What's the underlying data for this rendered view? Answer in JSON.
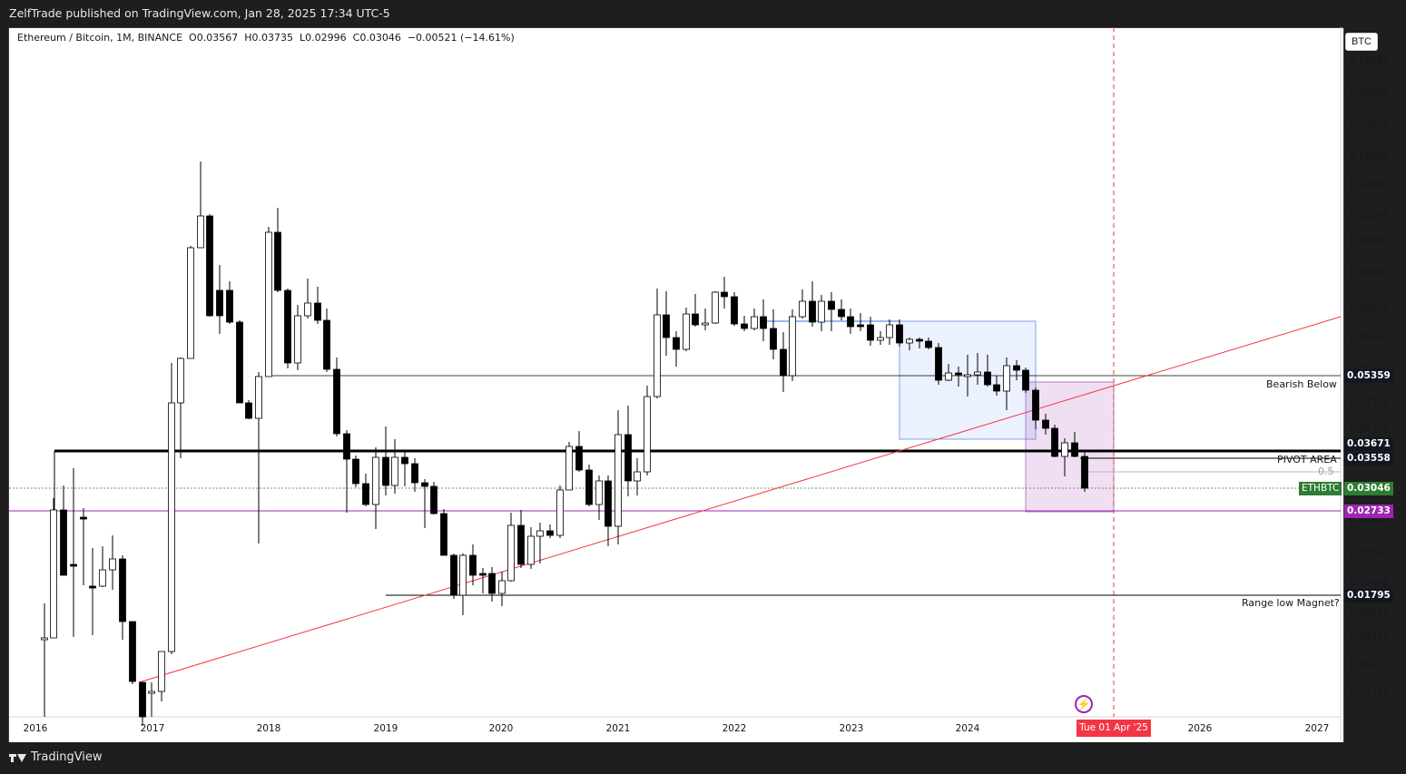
{
  "header": {
    "publisher_line": "ZelfTrade published on TradingView.com, Jan 28, 2025 17:34 UTC-5"
  },
  "legend": {
    "symbol": "Ethereum / Bitcoin, 1M, BINANCE",
    "o_label": "O",
    "o_value": "0.03567",
    "h_label": "H",
    "h_value": "0.03735",
    "l_label": "L",
    "l_value": "0.02996",
    "c_label": "C",
    "c_value": "0.03046",
    "change": "−0.00521 (−14.61%)"
  },
  "price_axis": {
    "currency": "BTC",
    "ticks": [
      "0.26000",
      "0.22000",
      "0.19000",
      "0.16000",
      "0.14000",
      "0.12000",
      "0.10500",
      "0.09000",
      "0.07500",
      "0.06500",
      "0.05500",
      "0.04700",
      "0.04100",
      "0.03000",
      "0.02600",
      "0.02200",
      "0.01900",
      "0.01650",
      "0.01450",
      "0.01270",
      "0.01110"
    ]
  },
  "price_badges": {
    "bearish": "0.05359",
    "pivot_high": "0.03671",
    "pivot_low": "0.03558",
    "symbol_tag": "ETHBTC",
    "last": "0.03046",
    "purple": "0.02733",
    "range_low": "0.01795"
  },
  "time_axis": {
    "labels": [
      "2016",
      "2017",
      "2018",
      "2019",
      "2020",
      "2021",
      "2022",
      "2023",
      "2024",
      "2026",
      "2027"
    ],
    "highlight": "Tue 01 Apr '25"
  },
  "annotations": {
    "bearish_below": "Bearish Below",
    "pivot_area": "PIVOT AREA",
    "fib_half": "0.5",
    "range_low": "Range low Magnet?"
  },
  "colors": {
    "up_candle": "#ffffff",
    "down_candle": "#000000",
    "trendline": "#f23645",
    "purple_line": "#9c27b0",
    "blue_box": "#2962ff",
    "badge_purple": "#9c27b0",
    "badge_green": "#2e7d32"
  },
  "brand": {
    "name": "TradingView"
  }
}
